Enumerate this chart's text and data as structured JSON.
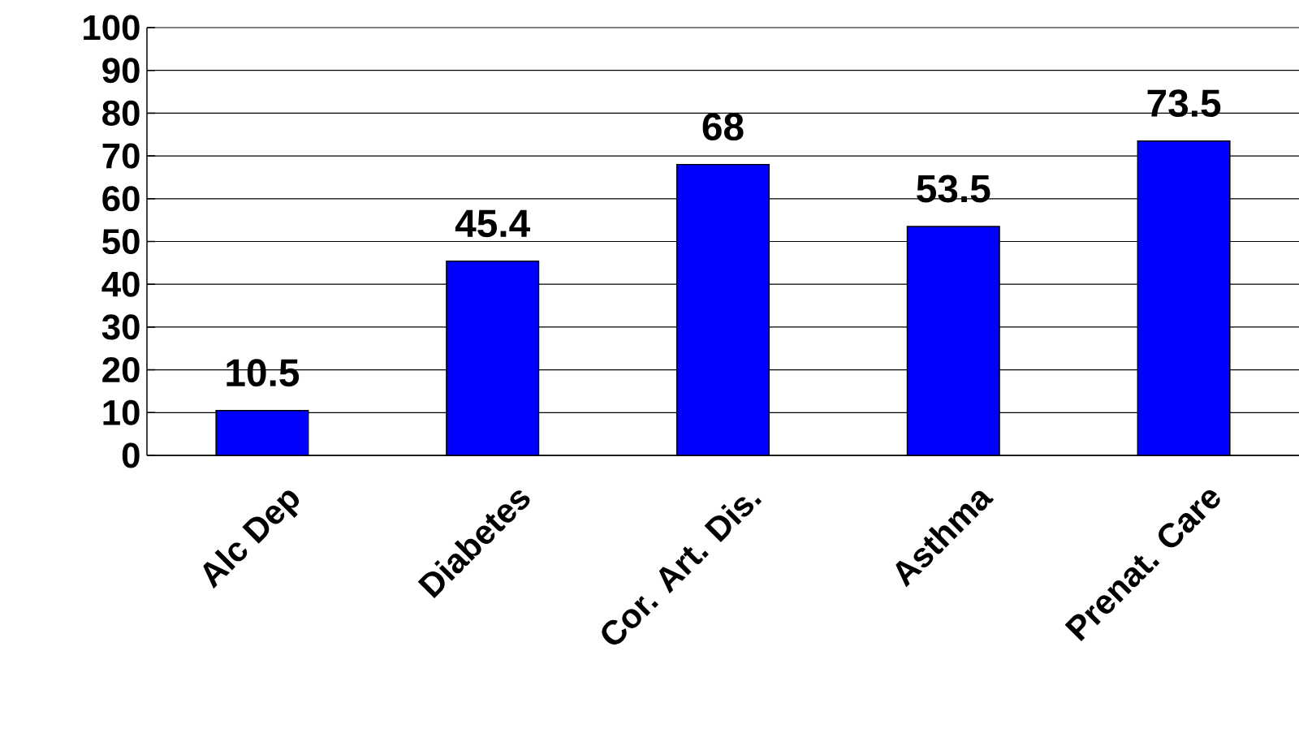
{
  "chart_data": {
    "type": "bar",
    "categories": [
      "Alc Dep",
      "Diabetes",
      "Cor. Art. Dis.",
      "Asthma",
      "Prenat. Care"
    ],
    "values": [
      10.5,
      45.4,
      68,
      53.5,
      73.5
    ],
    "color": "#0000ff",
    "ylim": [
      0,
      100
    ],
    "yticks": [
      0,
      10,
      20,
      30,
      40,
      50,
      60,
      70,
      80,
      90,
      100
    ],
    "grid": "y",
    "data_labels": true
  }
}
